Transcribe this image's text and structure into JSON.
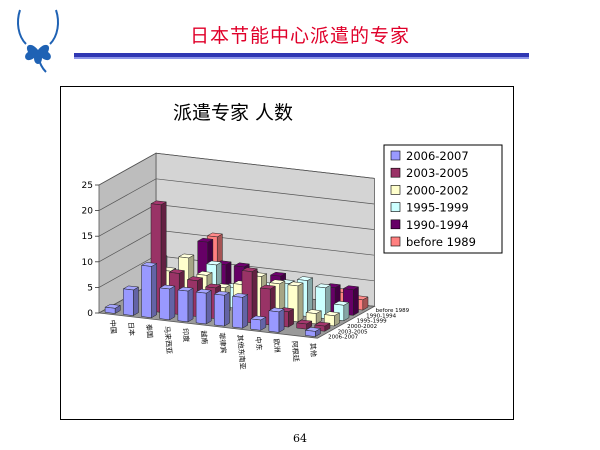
{
  "slide": {
    "title": "日本节能中心派遣的专家",
    "page_number": "64"
  },
  "colors": {
    "title_red": "#e0002a",
    "rule_blue": "#2f37b3",
    "logo_blue": "#1f62b4"
  },
  "chart_data": {
    "type": "bar",
    "subtype": "3d-clustered",
    "title": "派遣专家  人数",
    "xlabel": "",
    "ylabel": "",
    "ylim": [
      0,
      25
    ],
    "yticks": [
      0,
      5,
      10,
      15,
      20,
      25
    ],
    "grid": true,
    "legend_position": "right",
    "categories": [
      "中国",
      "日本",
      "泰国",
      "马来西亚",
      "印度",
      "越南",
      "菲律宾",
      "其他东南亚",
      "中东",
      "欧洲",
      "阿根廷",
      "其他"
    ],
    "series": [
      {
        "name": "2006-2007",
        "color": "#9999ff",
        "values": [
          1,
          5,
          10,
          6,
          6,
          6,
          6,
          6,
          2,
          4,
          0,
          1
        ]
      },
      {
        "name": "2003-2005",
        "color": "#993366",
        "values": [
          0,
          0,
          21,
          8,
          7,
          6,
          0,
          10,
          7,
          3,
          1,
          1
        ]
      },
      {
        "name": "2000-2002",
        "color": "#ffffcc",
        "values": [
          0,
          3,
          7,
          10,
          7,
          5,
          6,
          8,
          7,
          7,
          2,
          2
        ]
      },
      {
        "name": "1995-1999",
        "color": "#ccffff",
        "values": [
          0,
          8,
          5,
          3,
          8,
          4,
          7,
          5,
          6,
          7,
          6,
          3
        ]
      },
      {
        "name": "1990-1994",
        "color": "#660066",
        "values": [
          0,
          0,
          0,
          11,
          7,
          7,
          0,
          6,
          3,
          0,
          5,
          5
        ]
      },
      {
        "name": "before 1989",
        "color": "#ff8080",
        "values": [
          0,
          0,
          0,
          11,
          0,
          0,
          0,
          0,
          0,
          0,
          3,
          2
        ]
      }
    ]
  }
}
